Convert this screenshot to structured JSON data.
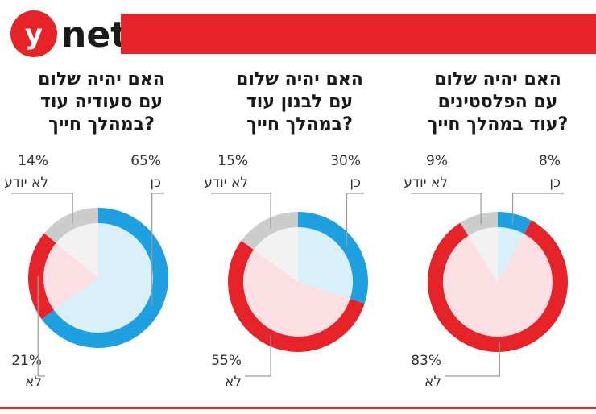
{
  "brand": {
    "logo_letter": "y",
    "logo_text": "net",
    "accent_color": "#e52329"
  },
  "colors": {
    "yes": "#1e9fe0",
    "no": "#e52329",
    "dont_know": "#cccccc",
    "yes_inner": "#d9f0fa",
    "no_inner": "#fcdfe2",
    "dont_know_inner": "#f2f2f2"
  },
  "chart_data": [
    {
      "type": "pie",
      "title_lines": [
        "האם יהיה שלום",
        "עם הפלסטינים",
        "עוד במהלך חייך?"
      ],
      "slices": [
        {
          "key": "yes",
          "label": "כן",
          "value": 8,
          "value_label": "8%"
        },
        {
          "key": "no",
          "label": "לא",
          "value": 83,
          "value_label": "83%"
        },
        {
          "key": "dont_know",
          "label": "לא יודע",
          "value": 9,
          "value_label": "9%"
        }
      ]
    },
    {
      "type": "pie",
      "title_lines": [
        "האם יהיה שלום",
        "עם לבנון עוד",
        "במהלך חייך?"
      ],
      "slices": [
        {
          "key": "yes",
          "label": "כן",
          "value": 30,
          "value_label": "30%"
        },
        {
          "key": "no",
          "label": "לא",
          "value": 55,
          "value_label": "55%"
        },
        {
          "key": "dont_know",
          "label": "לא יודע",
          "value": 15,
          "value_label": "15%"
        }
      ]
    },
    {
      "type": "pie",
      "title_lines": [
        "האם יהיה שלום",
        "עם סעודיה עוד",
        "במהלך חייך?"
      ],
      "slices": [
        {
          "key": "yes",
          "label": "כן",
          "value": 65,
          "value_label": "65%"
        },
        {
          "key": "no",
          "label": "לא",
          "value": 21,
          "value_label": "21%"
        },
        {
          "key": "dont_know",
          "label": "לא יודע",
          "value": 14,
          "value_label": "14%"
        }
      ]
    }
  ]
}
